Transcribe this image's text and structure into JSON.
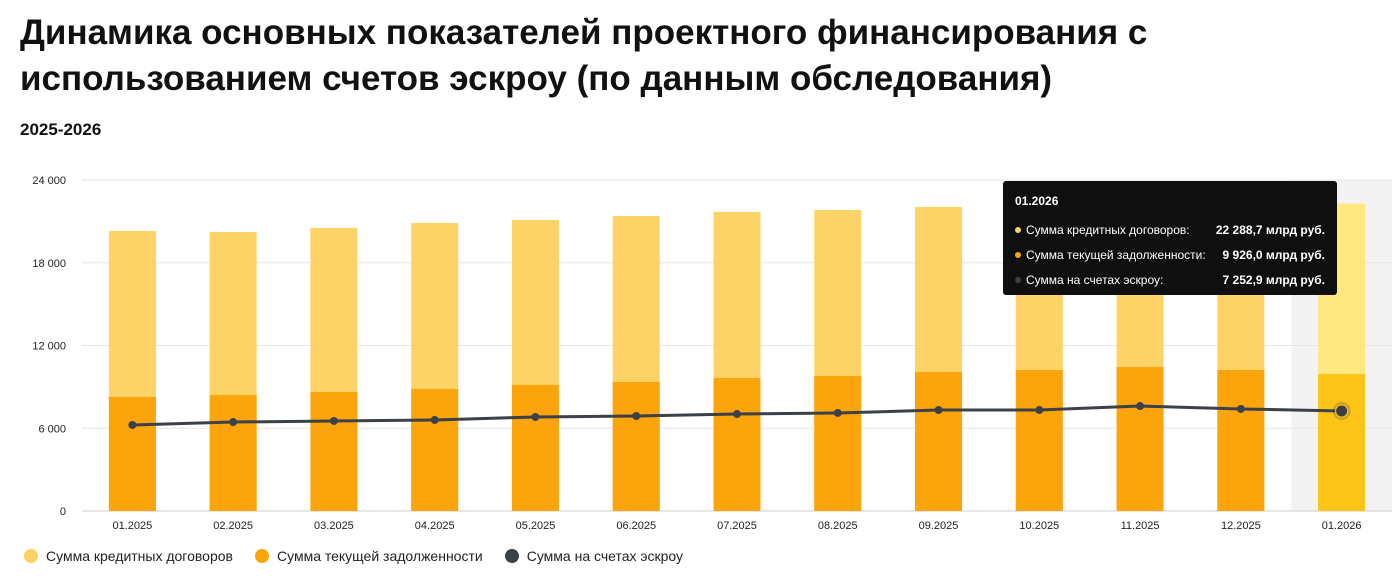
{
  "title": "Динамика основных показателей проектного финансирования с использованием счетов эскроу (по данным обследования)",
  "subtitle": "2025-2026",
  "chart_data": {
    "type": "bar",
    "title": "Динамика основных показателей проектного финансирования с использованием счетов эскроу (по данным обследования)",
    "subtitle": "2025-2026",
    "categories": [
      "01.2025",
      "02.2025",
      "03.2025",
      "04.2025",
      "05.2025",
      "06.2025",
      "07.2025",
      "08.2025",
      "09.2025",
      "10.2025",
      "11.2025",
      "12.2025",
      "01.2026"
    ],
    "series": [
      {
        "name": "Сумма кредитных договоров",
        "type": "bar",
        "color": "#fdd266",
        "highlight_color": "#ffe880",
        "values": [
          20300,
          20230,
          20520,
          20880,
          21100,
          21390,
          21680,
          21830,
          22040,
          22150,
          22250,
          22200,
          22288.7
        ]
      },
      {
        "name": "Сумма текущей задолженности",
        "type": "bar",
        "color": "#fba40b",
        "highlight_color": "#fdc418",
        "values": [
          8270,
          8410,
          8630,
          8850,
          9140,
          9350,
          9640,
          9790,
          10080,
          10220,
          10440,
          10220,
          9926.0
        ]
      },
      {
        "name": "Сумма на счетах эскроу",
        "type": "line",
        "color": "#3b4049",
        "values": [
          6240,
          6450,
          6530,
          6600,
          6820,
          6890,
          7030,
          7110,
          7320,
          7320,
          7610,
          7400,
          7252.9
        ]
      }
    ],
    "yticks": [
      0,
      6000,
      12000,
      18000,
      24000
    ],
    "ytick_labels": [
      "0",
      "6 000",
      "12 000",
      "18 000",
      "24 000"
    ],
    "ylim": [
      0,
      24000
    ],
    "xlabel": "",
    "ylabel": "",
    "grid": true,
    "legend": "bottom-left",
    "highlighted_index": 12
  },
  "tooltip": {
    "header": "01.2026",
    "rows": [
      {
        "label": "Сумма кредитных договоров:",
        "value": "22 288,7 млрд руб.",
        "color": "#fdd266"
      },
      {
        "label": "Сумма текущей задолженности:",
        "value": "9 926,0 млрд руб.",
        "color": "#fba40b"
      },
      {
        "label": "Сумма на счетах эскроу:",
        "value": "7 252,9 млрд руб.",
        "color": "#3b4049"
      }
    ]
  }
}
